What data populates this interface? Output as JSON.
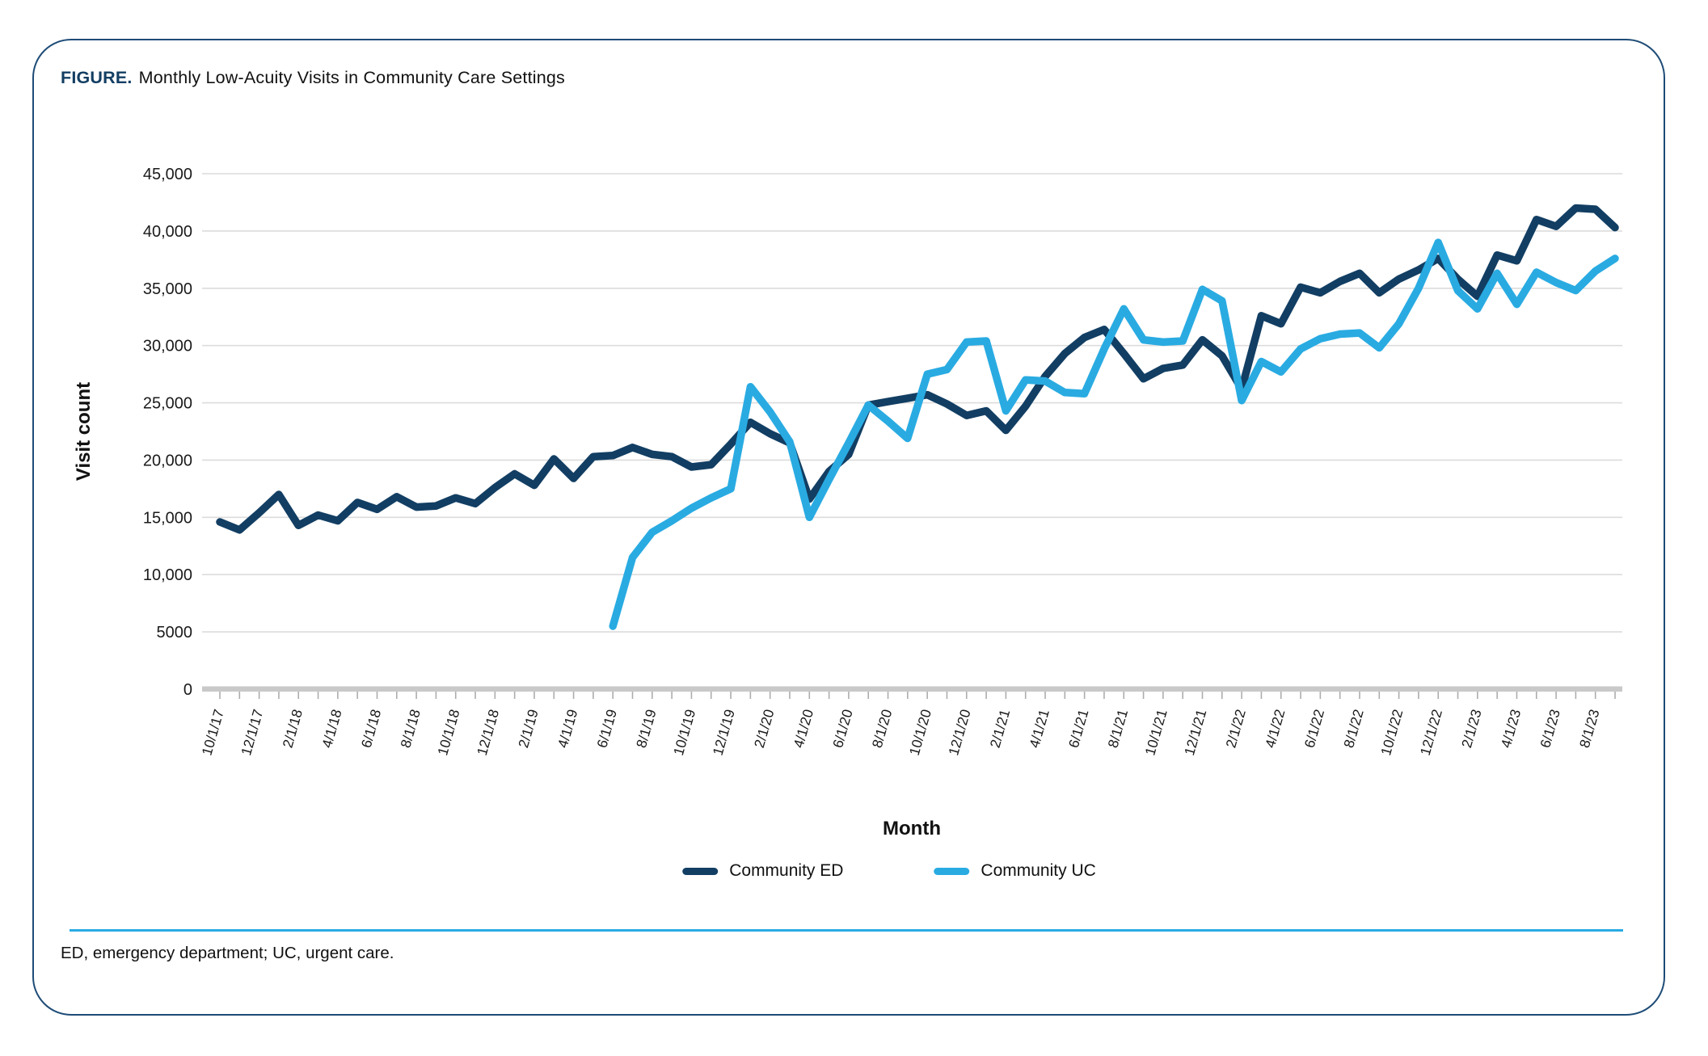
{
  "figure": {
    "label": "FIGURE.",
    "title": "Monthly Low-Acuity Visits in Community Care Settings"
  },
  "footnote": "ED, emergency department; UC, urgent care.",
  "colors": {
    "ed_navy": "#123e63",
    "uc_blue": "#29abe2",
    "card_border": "#1e4c77",
    "gridline": "#dcdcdc",
    "axis_bar": "#c9c9c9",
    "tick": "#adadad",
    "rule_blue": "#29abe2"
  },
  "chart_data": {
    "type": "line",
    "title": "Monthly Low-Acuity Visits in Community Care Settings",
    "xlabel": "Month",
    "ylabel": "Visit count",
    "ylim": [
      0,
      45000
    ],
    "grid": "horizontal",
    "legend_position": "bottom",
    "x_label_every": 2,
    "yticks": [
      {
        "value": 0,
        "label": "0"
      },
      {
        "value": 5000,
        "label": "5000"
      },
      {
        "value": 10000,
        "label": "10,000"
      },
      {
        "value": 15000,
        "label": "15,000"
      },
      {
        "value": 20000,
        "label": "20,000"
      },
      {
        "value": 25000,
        "label": "25,000"
      },
      {
        "value": 30000,
        "label": "30,000"
      },
      {
        "value": 35000,
        "label": "35,000"
      },
      {
        "value": 40000,
        "label": "40,000"
      },
      {
        "value": 45000,
        "label": "45,000"
      }
    ],
    "x": [
      "10/1/17",
      "11/1/17",
      "12/1/17",
      "1/1/18",
      "2/1/18",
      "3/1/18",
      "4/1/18",
      "5/1/18",
      "6/1/18",
      "7/1/18",
      "8/1/18",
      "9/1/18",
      "10/1/18",
      "11/1/18",
      "12/1/18",
      "1/1/19",
      "2/1/19",
      "3/1/19",
      "4/1/19",
      "5/1/19",
      "6/1/19",
      "7/1/19",
      "8/1/19",
      "9/1/19",
      "10/1/19",
      "11/1/19",
      "12/1/19",
      "1/1/20",
      "2/1/20",
      "3/1/20",
      "4/1/20",
      "5/1/20",
      "6/1/20",
      "7/1/20",
      "8/1/20",
      "9/1/20",
      "10/1/20",
      "11/1/20",
      "12/1/20",
      "1/1/21",
      "2/1/21",
      "3/1/21",
      "4/1/21",
      "5/1/21",
      "6/1/21",
      "7/1/21",
      "8/1/21",
      "9/1/21",
      "10/1/21",
      "11/1/21",
      "12/1/21",
      "1/1/22",
      "2/1/22",
      "3/1/22",
      "4/1/22",
      "5/1/22",
      "6/1/22",
      "7/1/22",
      "8/1/22",
      "9/1/22",
      "10/1/22",
      "11/1/22",
      "12/1/22",
      "1/1/23",
      "2/1/23",
      "3/1/23",
      "4/1/23",
      "5/1/23",
      "6/1/23",
      "7/1/23",
      "8/1/23",
      "9/1/23"
    ],
    "series": [
      {
        "name": "Community ED",
        "color": "#123e63",
        "values": [
          14600,
          13900,
          15400,
          17000,
          14300,
          15200,
          14700,
          16300,
          15700,
          16800,
          15900,
          16000,
          16700,
          16200,
          17600,
          18800,
          17800,
          20100,
          18400,
          20300,
          20400,
          21100,
          20500,
          20300,
          19400,
          19600,
          21400,
          23300,
          22300,
          21500,
          16600,
          19000,
          20500,
          24800,
          25100,
          25400,
          25700,
          24900,
          23900,
          24300,
          22600,
          24700,
          27300,
          29300,
          30700,
          31400,
          29300,
          27100,
          28000,
          28300,
          30500,
          29100,
          26200,
          32600,
          31900,
          35100,
          34600,
          35600,
          36300,
          34600,
          35800,
          36600,
          37600,
          35800,
          34300,
          37900,
          37400,
          41000,
          40400,
          42000,
          41900,
          40300
        ]
      },
      {
        "name": "Community UC",
        "color": "#29abe2",
        "values": [
          null,
          null,
          null,
          null,
          null,
          null,
          null,
          null,
          null,
          null,
          null,
          null,
          null,
          null,
          null,
          null,
          null,
          null,
          null,
          null,
          5500,
          11500,
          13700,
          14700,
          15800,
          16700,
          17500,
          26400,
          24200,
          21600,
          15000,
          18300,
          21500,
          24800,
          23400,
          21900,
          27500,
          27900,
          30300,
          30400,
          24300,
          27000,
          26900,
          25900,
          25800,
          29700,
          33200,
          30500,
          30300,
          30400,
          34900,
          33900,
          25200,
          28600,
          27700,
          29700,
          30600,
          31000,
          31100,
          29800,
          31900,
          35000,
          39000,
          34800,
          33200,
          36300,
          33600,
          36400,
          35500,
          34800,
          36500,
          37600
        ]
      }
    ]
  }
}
